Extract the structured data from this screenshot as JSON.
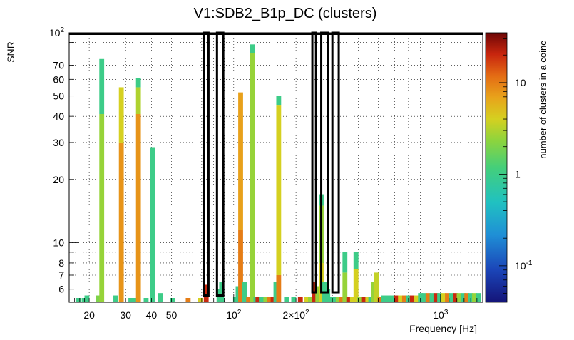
{
  "chart_data": {
    "type": "heatmap",
    "title": "V1:SDB2_B1p_DC (clusters)",
    "xlabel": "Frequency [Hz]",
    "ylabel": "SNR",
    "zlabel": "number of clusters in a coinc",
    "x_scale": "log",
    "y_scale": "log",
    "z_scale": "log",
    "xlim": [
      16,
      1600
    ],
    "ylim": [
      5.2,
      100
    ],
    "zlim": [
      0.04,
      35
    ],
    "x_tick_labels": [
      "20",
      "30",
      "40",
      "50",
      "10^2",
      "2×10^2",
      "10^3"
    ],
    "y_tick_labels": [
      "6",
      "7",
      "8",
      "10",
      "20",
      "30",
      "40",
      "50",
      "60",
      "70",
      "10^2"
    ],
    "z_tick_labels": [
      "10^-1",
      "1",
      "10"
    ],
    "grid": true,
    "columns": [
      {
        "f": 17.8,
        "segs": [
          [
            5.2,
            5.45,
            1
          ]
        ]
      },
      {
        "f": 18.9,
        "segs": [
          [
            5.2,
            5.45,
            1
          ]
        ]
      },
      {
        "f": 19.5,
        "segs": [
          [
            5.2,
            5.6,
            1
          ]
        ]
      },
      {
        "f": 22.1,
        "segs": [
          [
            5.2,
            5.6,
            2
          ]
        ]
      },
      {
        "f": 23.0,
        "segs": [
          [
            5.2,
            41,
            2.5
          ],
          [
            41,
            75,
            1
          ]
        ]
      },
      {
        "f": 26.9,
        "segs": [
          [
            5.2,
            5.6,
            1
          ]
        ]
      },
      {
        "f": 28.6,
        "segs": [
          [
            5.2,
            30,
            8
          ],
          [
            30,
            55,
            4
          ]
        ]
      },
      {
        "f": 31.8,
        "segs": [
          [
            5.2,
            5.45,
            1
          ]
        ]
      },
      {
        "f": 33.5,
        "segs": [
          [
            5.2,
            5.45,
            1
          ]
        ]
      },
      {
        "f": 34.6,
        "segs": [
          [
            5.2,
            41,
            8
          ],
          [
            41,
            55,
            3
          ],
          [
            55,
            61,
            1
          ]
        ]
      },
      {
        "f": 37.7,
        "segs": [
          [
            5.2,
            5.45,
            1
          ]
        ]
      },
      {
        "f": 40.4,
        "segs": [
          [
            5.2,
            28.5,
            1
          ]
        ]
      },
      {
        "f": 44.3,
        "segs": [
          [
            5.2,
            5.75,
            1
          ]
        ]
      },
      {
        "f": 50.5,
        "segs": [
          [
            5.2,
            5.45,
            1
          ]
        ]
      },
      {
        "f": 60.2,
        "segs": [
          [
            5.2,
            5.45,
            10
          ]
        ]
      },
      {
        "f": 69.1,
        "segs": [
          [
            5.2,
            5.45,
            4
          ]
        ]
      },
      {
        "f": 73.6,
        "segs": [
          [
            5.2,
            6.3,
            20
          ]
        ]
      },
      {
        "f": 84.9,
        "segs": [
          [
            5.2,
            6.0,
            1
          ]
        ]
      },
      {
        "f": 87.4,
        "segs": [
          [
            5.2,
            6.5,
            1
          ]
        ]
      },
      {
        "f": 102,
        "segs": [
          [
            5.2,
            5.5,
            1
          ]
        ]
      },
      {
        "f": 105,
        "segs": [
          [
            5.2,
            6.2,
            1
          ]
        ]
      },
      {
        "f": 108,
        "segs": [
          [
            5.2,
            11.5,
            10
          ],
          [
            11.5,
            52,
            7
          ]
        ]
      },
      {
        "f": 113,
        "segs": [
          [
            5.2,
            6.5,
            1
          ]
        ]
      },
      {
        "f": 116,
        "segs": [
          [
            5.2,
            5.5,
            1
          ]
        ]
      },
      {
        "f": 118,
        "segs": [
          [
            5.2,
            5.5,
            10
          ]
        ]
      },
      {
        "f": 123,
        "segs": [
          [
            5.2,
            80,
            2.5
          ],
          [
            80,
            88,
            1
          ]
        ]
      },
      {
        "f": 128,
        "segs": [
          [
            5.2,
            5.5,
            1
          ]
        ]
      },
      {
        "f": 131,
        "segs": [
          [
            5.2,
            5.5,
            20
          ]
        ]
      },
      {
        "f": 136,
        "segs": [
          [
            5.2,
            5.5,
            1
          ]
        ]
      },
      {
        "f": 143,
        "segs": [
          [
            5.2,
            5.5,
            2.5
          ]
        ]
      },
      {
        "f": 149,
        "segs": [
          [
            5.2,
            5.5,
            10
          ]
        ]
      },
      {
        "f": 155,
        "segs": [
          [
            5.2,
            5.5,
            20
          ]
        ]
      },
      {
        "f": 160,
        "segs": [
          [
            5.2,
            6.5,
            1
          ]
        ]
      },
      {
        "f": 165,
        "segs": [
          [
            5.2,
            7,
            10
          ],
          [
            7,
            45,
            4
          ],
          [
            45,
            50,
            1
          ]
        ]
      },
      {
        "f": 180,
        "segs": [
          [
            5.2,
            5.5,
            1
          ]
        ]
      },
      {
        "f": 195,
        "segs": [
          [
            5.2,
            5.5,
            1
          ]
        ]
      },
      {
        "f": 210,
        "segs": [
          [
            5.2,
            5.5,
            20
          ]
        ]
      },
      {
        "f": 225,
        "segs": [
          [
            5.2,
            5.5,
            4
          ]
        ]
      },
      {
        "f": 235,
        "segs": [
          [
            5.2,
            5.5,
            2.5
          ]
        ]
      },
      {
        "f": 245,
        "segs": [
          [
            5.2,
            6.5,
            20
          ]
        ]
      },
      {
        "f": 255,
        "segs": [
          [
            5.2,
            6.2,
            2.5
          ]
        ]
      },
      {
        "f": 265,
        "segs": [
          [
            5.2,
            8,
            4
          ],
          [
            8,
            15,
            2.5
          ],
          [
            15,
            17,
            1
          ]
        ]
      },
      {
        "f": 275,
        "segs": [
          [
            5.2,
            6.5,
            1
          ]
        ]
      },
      {
        "f": 285,
        "segs": [
          [
            5.2,
            6,
            1
          ]
        ]
      },
      {
        "f": 295,
        "segs": [
          [
            5.2,
            5.5,
            1
          ]
        ]
      },
      {
        "f": 310,
        "segs": [
          [
            5.2,
            5.5,
            1
          ]
        ]
      },
      {
        "f": 320,
        "segs": [
          [
            5.2,
            5.5,
            2.5
          ]
        ]
      },
      {
        "f": 333,
        "segs": [
          [
            5.2,
            5.5,
            10
          ]
        ]
      },
      {
        "f": 345,
        "segs": [
          [
            5.2,
            7.2,
            2.5
          ],
          [
            7.2,
            9,
            1
          ]
        ]
      },
      {
        "f": 360,
        "segs": [
          [
            5.2,
            5.5,
            20
          ]
        ]
      },
      {
        "f": 375,
        "segs": [
          [
            5.2,
            5.5,
            4
          ]
        ]
      },
      {
        "f": 390,
        "segs": [
          [
            5.2,
            7.5,
            4
          ],
          [
            7.5,
            9,
            1
          ]
        ]
      },
      {
        "f": 405,
        "segs": [
          [
            5.2,
            5.5,
            2.5
          ]
        ]
      },
      {
        "f": 425,
        "segs": [
          [
            5.2,
            5.5,
            20
          ]
        ]
      },
      {
        "f": 445,
        "segs": [
          [
            5.2,
            5.5,
            4
          ]
        ]
      },
      {
        "f": 460,
        "segs": [
          [
            5.2,
            5.5,
            1
          ]
        ]
      },
      {
        "f": 475,
        "segs": [
          [
            5.2,
            6.5,
            2.5
          ]
        ]
      },
      {
        "f": 490,
        "segs": [
          [
            5.2,
            7.2,
            3.5
          ]
        ]
      },
      {
        "f": 510,
        "segs": [
          [
            5.2,
            5.5,
            10
          ]
        ]
      },
      {
        "f": 530,
        "segs": [
          [
            5.2,
            5.6,
            1
          ]
        ]
      },
      {
        "f": 560,
        "segs": [
          [
            5.2,
            5.6,
            1
          ]
        ]
      },
      {
        "f": 585,
        "segs": [
          [
            5.2,
            5.6,
            1
          ]
        ]
      },
      {
        "f": 610,
        "segs": [
          [
            5.2,
            5.6,
            20
          ]
        ]
      },
      {
        "f": 640,
        "segs": [
          [
            5.2,
            5.6,
            4
          ]
        ]
      },
      {
        "f": 670,
        "segs": [
          [
            5.2,
            5.6,
            10
          ]
        ]
      },
      {
        "f": 700,
        "segs": [
          [
            5.2,
            5.6,
            1
          ]
        ]
      },
      {
        "f": 730,
        "segs": [
          [
            5.2,
            5.6,
            20
          ]
        ]
      },
      {
        "f": 765,
        "segs": [
          [
            5.2,
            5.6,
            4
          ]
        ]
      },
      {
        "f": 800,
        "segs": [
          [
            5.2,
            5.75,
            1
          ]
        ]
      },
      {
        "f": 835,
        "segs": [
          [
            5.2,
            5.75,
            1
          ]
        ]
      },
      {
        "f": 870,
        "segs": [
          [
            5.2,
            5.75,
            10
          ]
        ]
      },
      {
        "f": 910,
        "segs": [
          [
            5.2,
            5.75,
            1
          ]
        ]
      },
      {
        "f": 950,
        "segs": [
          [
            5.2,
            5.75,
            20
          ]
        ]
      },
      {
        "f": 990,
        "segs": [
          [
            5.2,
            5.75,
            1
          ]
        ]
      },
      {
        "f": 1035,
        "segs": [
          [
            5.2,
            5.75,
            4
          ]
        ]
      },
      {
        "f": 1080,
        "segs": [
          [
            5.2,
            5.75,
            10
          ]
        ]
      },
      {
        "f": 1130,
        "segs": [
          [
            5.2,
            5.75,
            1
          ]
        ]
      },
      {
        "f": 1180,
        "segs": [
          [
            5.2,
            5.75,
            20
          ]
        ]
      },
      {
        "f": 1230,
        "segs": [
          [
            5.2,
            5.75,
            2.5
          ]
        ]
      },
      {
        "f": 1285,
        "segs": [
          [
            5.2,
            5.75,
            1
          ]
        ]
      },
      {
        "f": 1340,
        "segs": [
          [
            5.2,
            5.75,
            10
          ]
        ]
      },
      {
        "f": 1400,
        "segs": [
          [
            5.2,
            5.75,
            1
          ]
        ]
      },
      {
        "f": 1460,
        "segs": [
          [
            5.2,
            5.75,
            2.5
          ]
        ]
      },
      {
        "f": 1530,
        "segs": [
          [
            5.2,
            5.75,
            1
          ]
        ]
      }
    ],
    "outlines": [
      {
        "f1": 16,
        "f2": 1600,
        "y1": 5.2,
        "y2": 100,
        "kind": "top-bar"
      },
      {
        "f1": 71.5,
        "f2": 75.5,
        "y1": 5.6,
        "y2": 100
      },
      {
        "f1": 83,
        "f2": 89,
        "y1": 5.6,
        "y2": 100
      },
      {
        "f1": 240,
        "f2": 250,
        "y1": 5.8,
        "y2": 100
      },
      {
        "f1": 265,
        "f2": 286,
        "y1": 5.8,
        "y2": 100
      },
      {
        "f1": 300,
        "f2": 322,
        "y1": 5.8,
        "y2": 100
      }
    ]
  }
}
